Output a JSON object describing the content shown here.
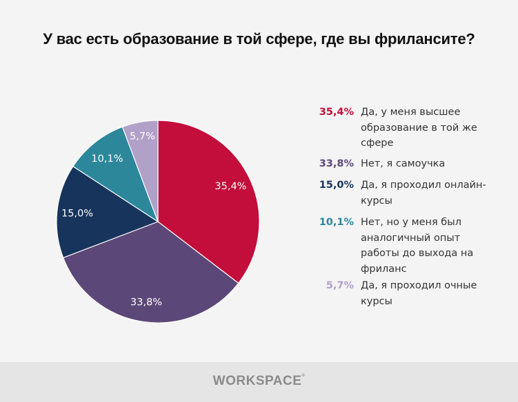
{
  "chart_data": {
    "type": "pie",
    "title": "У вас есть образование в той сфере, где вы фрилансите?",
    "start": "top",
    "direction": "clockwise",
    "slices": [
      {
        "value": 35.4,
        "label": "35,4%",
        "legend": "Да, у меня высшее образование в той же сфере",
        "color": "#c30d3a"
      },
      {
        "value": 33.8,
        "label": "33,8%",
        "legend": "Нет, я самоучка",
        "color": "#5c4878"
      },
      {
        "value": 15.0,
        "label": "15,0%",
        "legend": "Да, я проходил онлайн-курсы",
        "color": "#17345c"
      },
      {
        "value": 10.1,
        "label": "10,1%",
        "legend": "Нет, но у меня был аналогичный опыт работы до выхода на фриланс",
        "color": "#2d879b"
      },
      {
        "value": 5.7,
        "label": "5,7%",
        "legend": "Да, я проходил очные курсы",
        "color": "#b1a0c8"
      }
    ],
    "legend_position": "right"
  },
  "footer": {
    "logo": "WORKSPACE",
    "logo_mark": "®"
  }
}
